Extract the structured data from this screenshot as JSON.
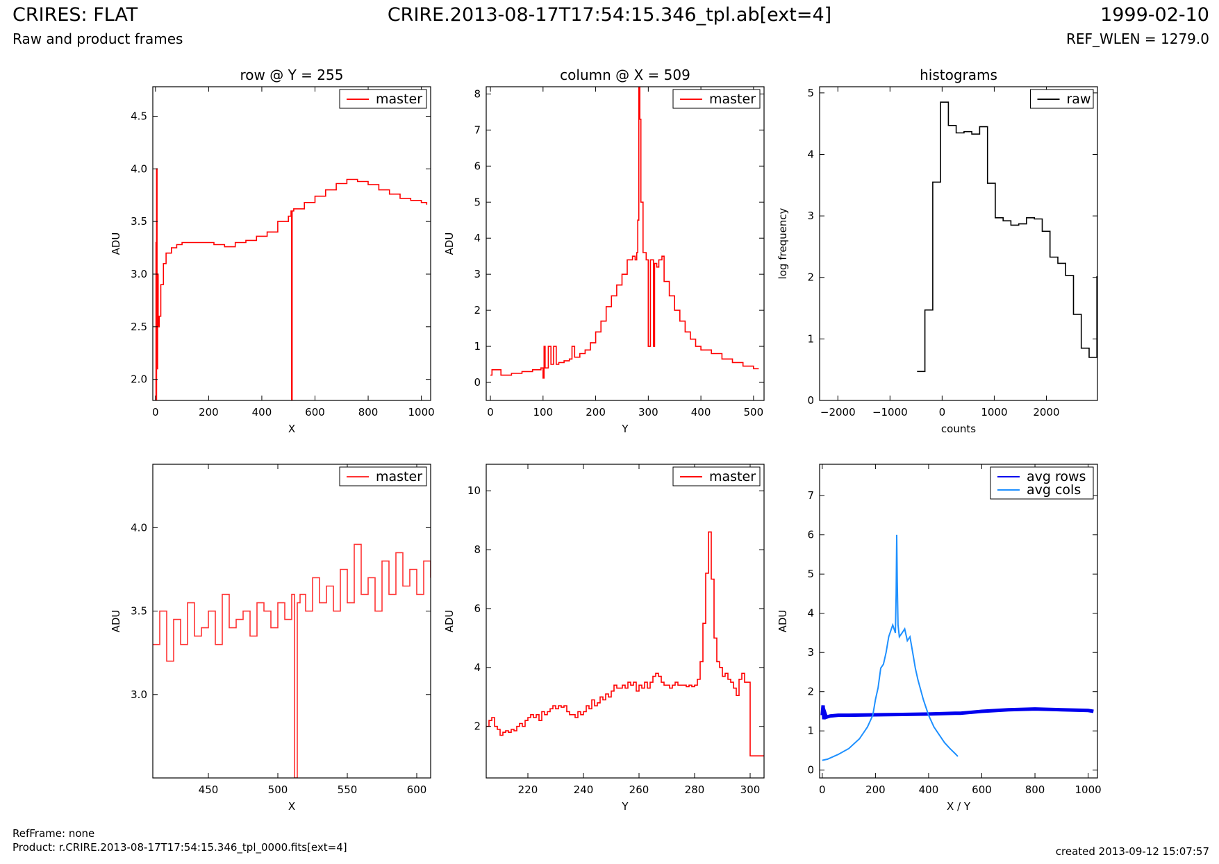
{
  "header": {
    "title_left": "CRIRES: FLAT",
    "subtitle_left": "Raw and product frames",
    "title_center": "CRIRE.2013-08-17T17:54:15.346_tpl.ab[ext=4]",
    "title_right": "1999-02-10",
    "subtitle_right": "REF_WLEN = 1279.0"
  },
  "footer": {
    "ref_frame": "RefFrame: none",
    "product": "Product: r.CRIRE.2013-08-17T17:54:15.346_tpl_0000.fits[ext=4]",
    "created": "created 2013-09-12 15:07:57"
  },
  "chart_data": [
    {
      "id": "row-full",
      "type": "line",
      "title": "row @ Y = 255",
      "xlabel": "X",
      "ylabel": "ADU",
      "xlim": [
        -10,
        1035
      ],
      "ylim": [
        1.8,
        4.78
      ],
      "xticks": [
        0,
        200,
        400,
        600,
        800,
        1000
      ],
      "xticklabels": [
        "0",
        "200",
        "400",
        "600",
        "800",
        "1000"
      ],
      "yticks": [
        2.0,
        2.5,
        3.0,
        3.5,
        4.0,
        4.5
      ],
      "yticklabels": [
        "2.0",
        "2.5",
        "3.0",
        "3.5",
        "4.0",
        "4.5"
      ],
      "legend": "top-right",
      "series": [
        {
          "name": "master",
          "color": "#ff0000",
          "step": true,
          "x": [
            0,
            2,
            4,
            6,
            8,
            10,
            14,
            20,
            30,
            40,
            60,
            80,
            100,
            140,
            180,
            220,
            260,
            300,
            340,
            380,
            420,
            460,
            500,
            510,
            512,
            514,
            520,
            560,
            600,
            640,
            680,
            720,
            760,
            800,
            840,
            880,
            920,
            960,
            1000,
            1020
          ],
          "y": [
            3.3,
            1.8,
            4.0,
            2.1,
            3.0,
            2.5,
            2.6,
            2.9,
            3.1,
            3.2,
            3.25,
            3.28,
            3.3,
            3.3,
            3.3,
            3.28,
            3.26,
            3.3,
            3.32,
            3.36,
            3.4,
            3.5,
            3.55,
            3.6,
            1.8,
            3.6,
            3.62,
            3.68,
            3.74,
            3.8,
            3.86,
            3.9,
            3.88,
            3.85,
            3.8,
            3.76,
            3.72,
            3.7,
            3.68,
            3.66
          ]
        }
      ]
    },
    {
      "id": "column-full",
      "type": "line",
      "title": "column @ X = 509",
      "xlabel": "Y",
      "ylabel": "ADU",
      "xlim": [
        -8,
        520
      ],
      "ylim": [
        -0.5,
        8.2
      ],
      "xticks": [
        0,
        100,
        200,
        300,
        400,
        500
      ],
      "xticklabels": [
        "0",
        "100",
        "200",
        "300",
        "400",
        "500"
      ],
      "yticks": [
        0,
        1,
        2,
        3,
        4,
        5,
        6,
        7,
        8
      ],
      "yticklabels": [
        "0",
        "1",
        "2",
        "3",
        "4",
        "5",
        "6",
        "7",
        "8"
      ],
      "legend": "top-right",
      "series": [
        {
          "name": "master",
          "color": "#ff0000",
          "step": true,
          "x": [
            0,
            3,
            20,
            40,
            60,
            80,
            96,
            100,
            102,
            104,
            110,
            115,
            120,
            125,
            130,
            140,
            150,
            155,
            160,
            170,
            180,
            190,
            200,
            210,
            220,
            230,
            240,
            250,
            260,
            270,
            275,
            278,
            280,
            282,
            284,
            286,
            290,
            296,
            300,
            304,
            310,
            312,
            316,
            320,
            326,
            330,
            340,
            350,
            360,
            370,
            380,
            390,
            400,
            420,
            440,
            460,
            480,
            500,
            510
          ],
          "y": [
            0.2,
            0.35,
            0.2,
            0.25,
            0.3,
            0.35,
            0.4,
            0.12,
            1.0,
            0.4,
            1.0,
            0.5,
            1.0,
            0.5,
            0.55,
            0.6,
            0.65,
            1.0,
            0.7,
            0.8,
            0.9,
            1.1,
            1.4,
            1.7,
            2.1,
            2.4,
            2.7,
            3.0,
            3.4,
            3.5,
            3.4,
            3.6,
            4.5,
            8.2,
            7.3,
            5.0,
            3.6,
            3.4,
            1.0,
            3.4,
            1.0,
            3.3,
            3.2,
            3.4,
            3.5,
            2.8,
            2.4,
            2.0,
            1.7,
            1.4,
            1.2,
            1.0,
            0.9,
            0.8,
            0.65,
            0.55,
            0.45,
            0.38,
            0.38
          ]
        }
      ]
    },
    {
      "id": "histograms",
      "type": "line",
      "title": "histograms",
      "xlabel": "counts",
      "ylabel": "log frequency",
      "xlim": [
        -2350,
        2980
      ],
      "ylim": [
        0,
        5.1
      ],
      "xticks": [
        -2000,
        -1000,
        0,
        1000,
        2000
      ],
      "xticklabels": [
        "−2000",
        "−1000",
        "0",
        "1000",
        "2000"
      ],
      "yticks": [
        0,
        1,
        2,
        3,
        4,
        5
      ],
      "yticklabels": [
        "0",
        "1",
        "2",
        "3",
        "4",
        "5"
      ],
      "legend": "top-right",
      "series": [
        {
          "name": "raw",
          "color": "#000000",
          "step": true,
          "x": [
            -480,
            -330,
            -180,
            -30,
            120,
            270,
            420,
            570,
            720,
            870,
            1020,
            1170,
            1320,
            1470,
            1620,
            1770,
            1920,
            2070,
            2220,
            2370,
            2520,
            2670,
            2820,
            2970
          ],
          "y": [
            0.47,
            1.47,
            3.55,
            4.85,
            4.47,
            4.35,
            4.37,
            4.33,
            4.45,
            3.53,
            2.97,
            2.92,
            2.85,
            2.87,
            2.97,
            2.95,
            2.75,
            2.33,
            2.23,
            2.03,
            1.4,
            0.85,
            0.7,
            2.02
          ]
        }
      ]
    },
    {
      "id": "row-zoom",
      "type": "line",
      "title": "",
      "xlabel": "X",
      "ylabel": "ADU",
      "xlim": [
        410,
        610
      ],
      "ylim": [
        2.5,
        4.38
      ],
      "xticks": [
        450,
        500,
        550,
        600
      ],
      "xticklabels": [
        "450",
        "500",
        "550",
        "600"
      ],
      "yticks": [
        3.0,
        3.5,
        4.0
      ],
      "yticklabels": [
        "3.0",
        "3.5",
        "4.0"
      ],
      "legend": "top-right",
      "series": [
        {
          "name": "master",
          "color": "#ff3333",
          "step": true,
          "x": [
            410,
            415,
            420,
            425,
            430,
            435,
            440,
            445,
            450,
            455,
            460,
            465,
            470,
            475,
            480,
            485,
            490,
            495,
            500,
            505,
            510,
            512,
            514,
            516,
            520,
            525,
            530,
            535,
            540,
            545,
            550,
            555,
            560,
            565,
            570,
            575,
            580,
            585,
            590,
            595,
            600,
            605,
            610
          ],
          "y": [
            3.3,
            3.5,
            3.2,
            3.45,
            3.3,
            3.55,
            3.35,
            3.4,
            3.5,
            3.3,
            3.6,
            3.4,
            3.45,
            3.5,
            3.35,
            3.55,
            3.5,
            3.4,
            3.55,
            3.45,
            3.6,
            2.5,
            3.55,
            3.6,
            3.5,
            3.7,
            3.55,
            3.65,
            3.5,
            3.75,
            3.55,
            3.9,
            3.6,
            3.7,
            3.5,
            3.8,
            3.6,
            3.85,
            3.65,
            3.75,
            3.6,
            3.8,
            3.7
          ]
        }
      ]
    },
    {
      "id": "column-zoom",
      "type": "line",
      "title": "",
      "xlabel": "Y",
      "ylabel": "ADU",
      "xlim": [
        205,
        305
      ],
      "ylim": [
        0.25,
        10.9
      ],
      "xticks": [
        220,
        240,
        260,
        280,
        300
      ],
      "xticklabels": [
        "220",
        "240",
        "260",
        "280",
        "300"
      ],
      "yticks": [
        2,
        4,
        6,
        8,
        10
      ],
      "yticklabels": [
        "2",
        "4",
        "6",
        "8",
        "10"
      ],
      "legend": "top-right",
      "series": [
        {
          "name": "master",
          "color": "#ff0000",
          "step": true,
          "x": [
            205,
            206,
            207,
            208,
            209,
            210,
            211,
            212,
            213,
            214,
            215,
            216,
            217,
            218,
            219,
            220,
            221,
            222,
            223,
            224,
            225,
            226,
            227,
            228,
            229,
            230,
            231,
            232,
            233,
            234,
            235,
            236,
            237,
            238,
            239,
            240,
            241,
            242,
            243,
            244,
            245,
            246,
            247,
            248,
            249,
            250,
            251,
            252,
            253,
            254,
            255,
            256,
            257,
            258,
            259,
            260,
            261,
            262,
            263,
            264,
            265,
            266,
            267,
            268,
            269,
            270,
            271,
            272,
            273,
            274,
            275,
            276,
            277,
            278,
            279,
            280,
            281,
            282,
            283,
            284,
            285,
            286,
            287,
            288,
            289,
            290,
            291,
            292,
            293,
            294,
            295,
            296,
            297,
            298,
            300,
            305
          ],
          "y": [
            2.0,
            2.2,
            2.3,
            2.0,
            1.9,
            1.7,
            1.8,
            1.85,
            1.8,
            1.9,
            1.85,
            2.0,
            2.1,
            2.0,
            2.2,
            2.3,
            2.4,
            2.3,
            2.4,
            2.2,
            2.5,
            2.4,
            2.5,
            2.6,
            2.7,
            2.6,
            2.7,
            2.65,
            2.7,
            2.5,
            2.4,
            2.4,
            2.3,
            2.5,
            2.4,
            2.5,
            2.7,
            2.6,
            2.9,
            2.7,
            2.8,
            3.0,
            2.9,
            3.1,
            3.0,
            3.2,
            3.4,
            3.3,
            3.3,
            3.4,
            3.3,
            3.5,
            3.4,
            3.5,
            3.2,
            3.4,
            3.3,
            3.5,
            3.3,
            3.5,
            3.7,
            3.8,
            3.7,
            3.5,
            3.4,
            3.4,
            3.3,
            3.4,
            3.5,
            3.4,
            3.4,
            3.4,
            3.35,
            3.4,
            3.35,
            3.4,
            3.6,
            4.2,
            5.5,
            7.2,
            8.6,
            7.0,
            5.0,
            4.2,
            4.0,
            3.7,
            3.8,
            3.6,
            3.5,
            3.3,
            3.05,
            3.6,
            3.8,
            3.5,
            1.0,
            1.0
          ]
        }
      ]
    },
    {
      "id": "averages",
      "type": "line",
      "title": "",
      "xlabel": "X / Y",
      "ylabel": "ADU",
      "xlim": [
        -10,
        1035
      ],
      "ylim": [
        -0.2,
        7.8
      ],
      "xticks": [
        0,
        200,
        400,
        600,
        800,
        1000
      ],
      "xticklabels": [
        "0",
        "200",
        "400",
        "600",
        "800",
        "1000"
      ],
      "yticks": [
        0,
        1,
        2,
        3,
        4,
        5,
        6,
        7
      ],
      "yticklabels": [
        "0",
        "1",
        "2",
        "3",
        "4",
        "5",
        "6",
        "7"
      ],
      "legend": "top-right",
      "series": [
        {
          "name": "avg rows",
          "color": "#0000ee",
          "step": false,
          "width": 5,
          "x": [
            0,
            3,
            6,
            10,
            15,
            30,
            60,
            100,
            200,
            300,
            400,
            500,
            520,
            600,
            700,
            800,
            900,
            1000,
            1020
          ],
          "y": [
            1.4,
            1.65,
            1.3,
            1.45,
            1.35,
            1.38,
            1.4,
            1.4,
            1.41,
            1.42,
            1.43,
            1.45,
            1.45,
            1.5,
            1.54,
            1.56,
            1.54,
            1.52,
            1.5
          ]
        },
        {
          "name": "avg cols",
          "color": "#1e90ff",
          "step": false,
          "width": 2,
          "x": [
            0,
            20,
            60,
            100,
            140,
            170,
            190,
            200,
            210,
            220,
            230,
            240,
            250,
            260,
            265,
            270,
            275,
            278,
            280,
            282,
            285,
            290,
            300,
            310,
            320,
            330,
            340,
            350,
            360,
            380,
            400,
            420,
            440,
            460,
            480,
            500,
            510
          ],
          "y": [
            0.25,
            0.28,
            0.4,
            0.55,
            0.8,
            1.1,
            1.4,
            1.8,
            2.1,
            2.6,
            2.7,
            3.0,
            3.4,
            3.6,
            3.7,
            3.6,
            3.5,
            4.5,
            6.0,
            4.8,
            3.7,
            3.4,
            3.5,
            3.6,
            3.3,
            3.4,
            3.0,
            2.6,
            2.3,
            1.8,
            1.4,
            1.1,
            0.9,
            0.7,
            0.55,
            0.42,
            0.35
          ]
        }
      ]
    }
  ]
}
